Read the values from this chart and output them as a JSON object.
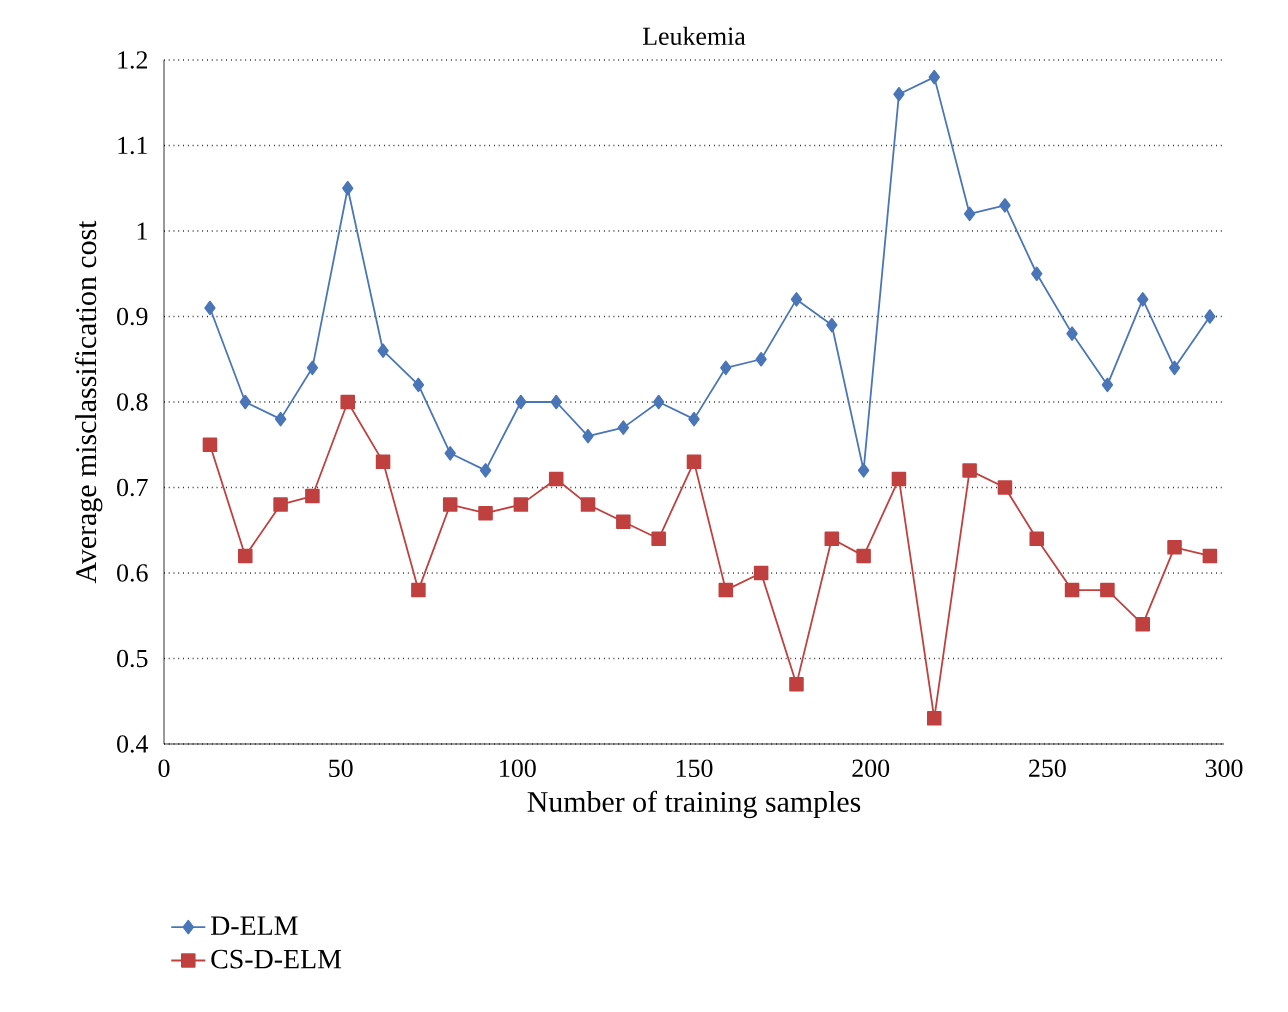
{
  "chart_data": {
    "type": "line",
    "title": "Leukemia",
    "xlabel": "Number of training samples",
    "ylabel": "Average misclassification cost",
    "x": [
      13,
      23,
      33,
      42,
      52,
      62,
      72,
      81,
      91,
      101,
      111,
      120,
      130,
      140,
      150,
      159,
      169,
      179,
      189,
      198,
      208,
      218,
      228,
      238,
      247,
      257,
      267,
      277,
      286,
      296
    ],
    "series": [
      {
        "name": "D-ELM",
        "color": "#4a76b8",
        "marker": "diamond",
        "values": [
          0.91,
          0.8,
          0.78,
          0.84,
          1.05,
          0.86,
          0.82,
          0.74,
          0.72,
          0.8,
          0.8,
          0.76,
          0.77,
          0.8,
          0.78,
          0.84,
          0.85,
          0.92,
          0.89,
          0.72,
          1.16,
          1.18,
          1.02,
          1.03,
          0.95,
          0.88,
          0.82,
          0.92,
          0.84,
          0.9
        ]
      },
      {
        "name": "CS-D-ELM",
        "color": "#c0403f",
        "marker": "square",
        "values": [
          0.75,
          0.62,
          0.68,
          0.69,
          0.8,
          0.73,
          0.58,
          0.68,
          0.67,
          0.68,
          0.71,
          0.68,
          0.66,
          0.64,
          0.73,
          0.58,
          0.6,
          0.47,
          0.64,
          0.62,
          0.71,
          0.43,
          0.72,
          0.7,
          0.64,
          0.58,
          0.58,
          0.54,
          0.63,
          0.62
        ]
      }
    ],
    "xlim": [
      0,
      300
    ],
    "xticks": [
      0,
      50,
      100,
      150,
      200,
      250,
      300
    ],
    "ylim": [
      0.4,
      1.2
    ],
    "yticks": [
      0.4,
      0.5,
      0.6,
      0.7,
      0.8,
      0.9,
      1,
      1.1,
      1.2
    ],
    "grid": "y",
    "legend": "bottom left",
    "line_style": "solid"
  }
}
